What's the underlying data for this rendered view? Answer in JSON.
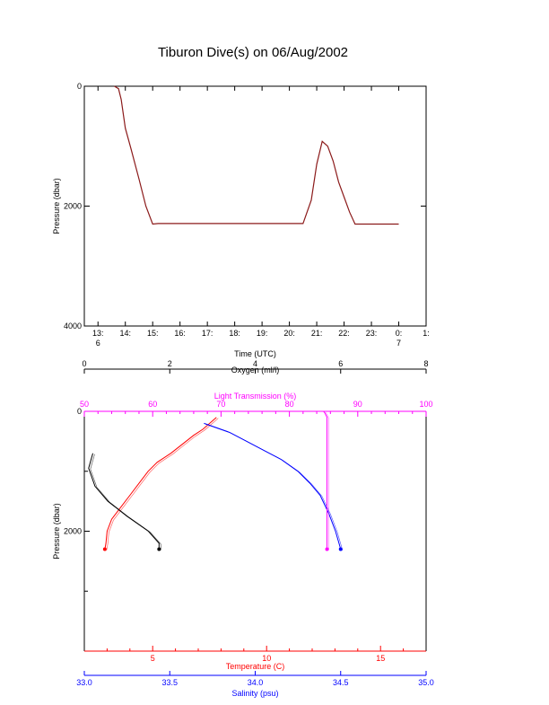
{
  "title": "Tiburon Dive(s) on 06/Aug/2002",
  "colors": {
    "axis": "#000000",
    "pressure_trace": "#8b1a1a",
    "temperature": "#ff0000",
    "salinity": "#0000ff",
    "oxygen": "#000000",
    "light_transmission": "#ff00ff"
  },
  "chart_data": [
    {
      "type": "line",
      "title": "Tiburon Dive(s) on 06/Aug/2002",
      "xlabel": "Time (UTC)",
      "ylabel": "Pressure (dbar)",
      "xlim": [
        12.5,
        25.0
      ],
      "ylim": [
        4000,
        0
      ],
      "y_inverted": true,
      "x_ticks": [
        {
          "v": 13.0,
          "label": "13:",
          "sub": "6"
        },
        {
          "v": 14.0,
          "label": "14:"
        },
        {
          "v": 15.0,
          "label": "15:"
        },
        {
          "v": 16.0,
          "label": "16:"
        },
        {
          "v": 17.0,
          "label": "17:"
        },
        {
          "v": 18.0,
          "label": "18:"
        },
        {
          "v": 19.0,
          "label": "19:"
        },
        {
          "v": 20.0,
          "label": "20:"
        },
        {
          "v": 21.0,
          "label": "21:"
        },
        {
          "v": 22.0,
          "label": "22:"
        },
        {
          "v": 23.0,
          "label": "23:"
        },
        {
          "v": 24.0,
          "label": "0:",
          "sub": "7"
        },
        {
          "v": 25.0,
          "label": "1:"
        }
      ],
      "y_ticks": [
        {
          "v": 0,
          "label": "0"
        },
        {
          "v": 2000,
          "label": "2000"
        },
        {
          "v": 4000,
          "label": "4000"
        }
      ],
      "grid": false,
      "series": [
        {
          "x": [
            13.6,
            13.75,
            13.85,
            14.0,
            14.2,
            14.5,
            14.75,
            15.0,
            15.2,
            16.0,
            17.0,
            18.0,
            19.0,
            20.0,
            20.5,
            20.8,
            21.0,
            21.2,
            21.4,
            21.6,
            21.8,
            22.0,
            22.2,
            22.4,
            22.7,
            23.0,
            24.0
          ],
          "y": [
            0,
            40,
            220,
            700,
            1030,
            1550,
            2000,
            2300,
            2290,
            2290,
            2290,
            2290,
            2290,
            2290,
            2290,
            1900,
            1300,
            920,
            1000,
            1250,
            1600,
            1850,
            2100,
            2300,
            2300,
            2300,
            2300
          ]
        }
      ]
    },
    {
      "type": "line",
      "ylabel": "Pressure (dbar)",
      "ylim": [
        4000,
        0
      ],
      "y_inverted": true,
      "y_ticks": [
        {
          "v": 0,
          "label": "0"
        },
        {
          "v": 2000,
          "label": "2000"
        }
      ],
      "x_axes": {
        "oxygen": {
          "label": "Oxygen (ml/l)",
          "range": [
            0,
            8
          ],
          "ticks": [
            0,
            2,
            4,
            6,
            8
          ],
          "position": "top"
        },
        "light_transmission": {
          "label": "Light Transmission (%)",
          "range": [
            50,
            100
          ],
          "ticks": [
            50,
            60,
            70,
            80,
            90,
            100
          ],
          "position": "top"
        },
        "temperature": {
          "label": "Temperature (C)",
          "range": [
            2,
            17
          ],
          "ticks": [
            5,
            10,
            15
          ],
          "position": "bottom"
        },
        "salinity": {
          "label": "Salinity (psu)",
          "range": [
            33.0,
            35.0
          ],
          "ticks": [
            "33.0",
            "33.5",
            "34.0",
            "34.5",
            "35.0"
          ],
          "position": "bottom"
        }
      },
      "series": [
        {
          "name": "",
          "axis": "temperature",
          "x": [
            7.8,
            7.5,
            7.2,
            6.8,
            6.3,
            5.8,
            5.2,
            4.8,
            4.4,
            4.0,
            3.6,
            3.2,
            3.0,
            2.95,
            2.9
          ],
          "y": [
            100,
            200,
            300,
            400,
            550,
            700,
            850,
            1000,
            1200,
            1400,
            1600,
            1800,
            2000,
            2200,
            2300
          ]
        },
        {
          "name": "",
          "axis": "salinity",
          "x": [
            33.7,
            33.85,
            33.95,
            34.05,
            34.15,
            34.25,
            34.32,
            34.38,
            34.43,
            34.47,
            34.5
          ],
          "y": [
            200,
            350,
            500,
            650,
            800,
            1000,
            1200,
            1400,
            1700,
            2000,
            2300
          ]
        },
        {
          "name": "",
          "axis": "oxygen",
          "x": [
            0.2,
            0.1,
            0.25,
            0.55,
            1.0,
            1.5,
            1.75,
            1.75
          ],
          "y": [
            700,
            950,
            1250,
            1500,
            1750,
            2000,
            2200,
            2300
          ]
        },
        {
          "name": "",
          "axis": "light_transmission",
          "x": [
            85.0,
            85.2,
            85.5,
            85.5,
            85.5,
            85.5
          ],
          "y": [
            0,
            30,
            100,
            800,
            1600,
            2300
          ]
        }
      ]
    }
  ]
}
